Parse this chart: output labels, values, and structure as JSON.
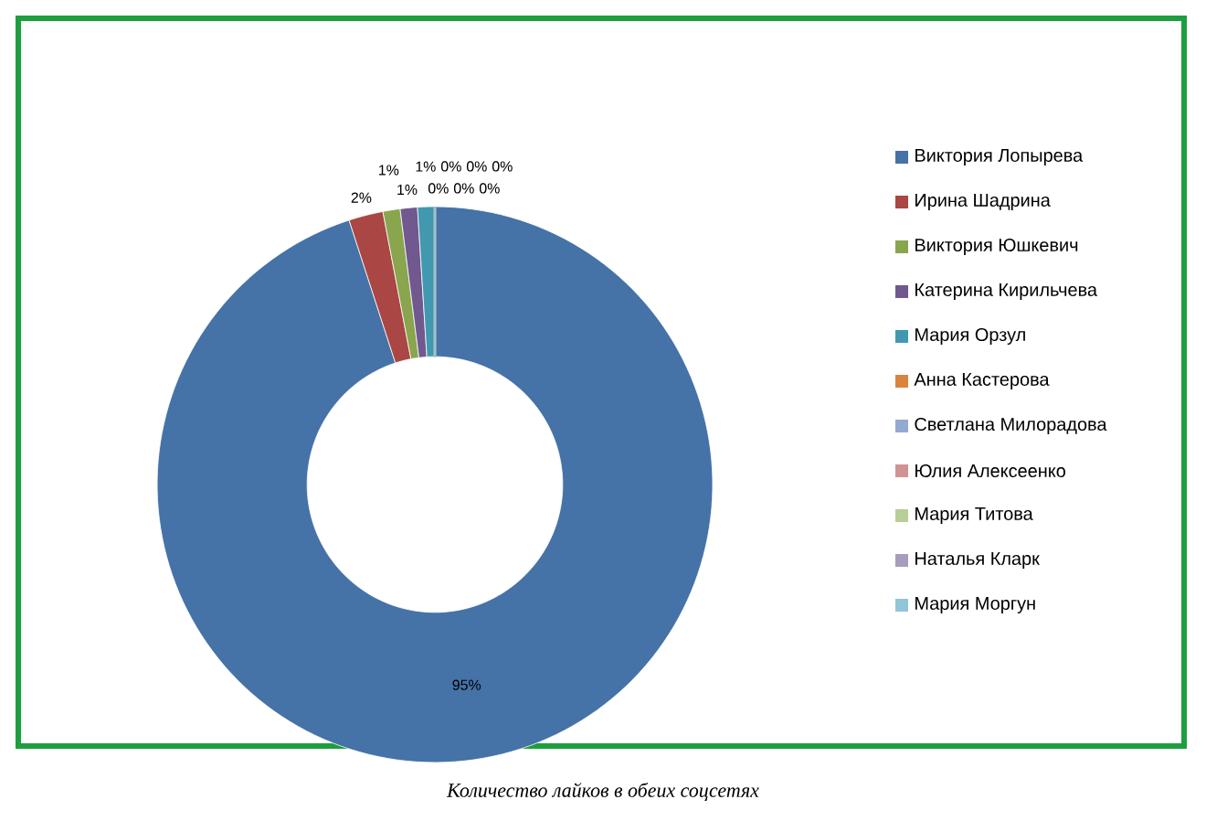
{
  "chart_data": {
    "type": "donut",
    "title": "Количество лайков в обеих соцсетях",
    "categories": [
      "Виктория Лопырева",
      "Ирина Шадрина",
      "Виктория Юшкевич",
      "Катерина Кирильчева",
      "Мария Орзул",
      "Анна Кастерова",
      "Светлана Милорадова",
      "Юлия Алексеенко",
      "Мария Титова",
      "Наталья Кларк",
      "Мария Моргун"
    ],
    "values": [
      95,
      2,
      1,
      1,
      1,
      0,
      0,
      0,
      0,
      0,
      0
    ],
    "value_labels": [
      "95%",
      "2%",
      "1%",
      "1%",
      "1%",
      "0%",
      "0%",
      "0%",
      "0%",
      "0%",
      "0%"
    ],
    "colors": [
      "#4572a7",
      "#aa4643",
      "#89a54e",
      "#71588f",
      "#4198af",
      "#db843d",
      "#93a9cf",
      "#d19392",
      "#b9cd96",
      "#a99bbd",
      "#92c5d8"
    ],
    "legend": "right"
  }
}
